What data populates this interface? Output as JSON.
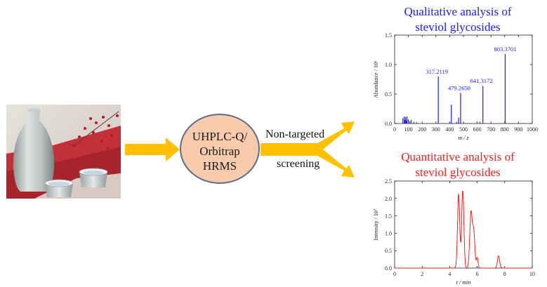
{
  "figure": {
    "instrument": {
      "line1": "UHPLC-Q/",
      "line2": "Orbitrap",
      "line3": "HRMS"
    },
    "arrow_labels": {
      "top": "Non-targeted",
      "bottom": "screening"
    },
    "qualitative_title": {
      "line1": "Qualitative analysis of",
      "line2": "steviol glycosides"
    },
    "quantitative_title": {
      "line1": "Quantitative analysis of",
      "line2": "steviol glycosides"
    },
    "colors": {
      "arrow": "#ffc000",
      "ellipse_fill": "#f8cbad",
      "ellipse_stroke": "#5b6d8c",
      "qual": "#1a1aff",
      "quant": "#ff1a1a"
    }
  },
  "chart_data": [
    {
      "type": "bar",
      "subtype": "mass-spectrum",
      "color": "#1a1aff",
      "xlabel": "m / z",
      "ylabel": "Abundance / 10⁶",
      "xlim": [
        0,
        1000
      ],
      "ylim": [
        0,
        1.5
      ],
      "xticks": [
        0,
        100,
        200,
        300,
        400,
        500,
        600,
        700,
        800,
        900,
        1000
      ],
      "yticks": [
        0.0,
        0.5,
        1.0,
        1.5
      ],
      "peaks": [
        {
          "x": 60,
          "y": 0.09
        },
        {
          "x": 70,
          "y": 0.12
        },
        {
          "x": 75,
          "y": 0.06
        },
        {
          "x": 80,
          "y": 0.11
        },
        {
          "x": 85,
          "y": 0.05
        },
        {
          "x": 90,
          "y": 0.12
        },
        {
          "x": 100,
          "y": 0.07
        },
        {
          "x": 110,
          "y": 0.04
        },
        {
          "x": 120,
          "y": 0.06
        },
        {
          "x": 140,
          "y": 0.03
        },
        {
          "x": 160,
          "y": 0.02
        },
        {
          "x": 317.2119,
          "y": 0.8
        },
        {
          "x": 400,
          "y": 0.02
        },
        {
          "x": 412,
          "y": 0.32
        },
        {
          "x": 450,
          "y": 0.03
        },
        {
          "x": 465,
          "y": 0.1
        },
        {
          "x": 479.265,
          "y": 0.52
        },
        {
          "x": 641.3172,
          "y": 0.64
        },
        {
          "x": 620,
          "y": 0.03
        },
        {
          "x": 803.3701,
          "y": 1.18
        }
      ],
      "labels": [
        {
          "x": 317.2119,
          "y": 0.8,
          "text": "317.2119"
        },
        {
          "x": 479.265,
          "y": 0.52,
          "text": "479.2650"
        },
        {
          "x": 641.3172,
          "y": 0.64,
          "text": "641.3172"
        },
        {
          "x": 803.3701,
          "y": 1.18,
          "text": "803.3701"
        }
      ]
    },
    {
      "type": "line",
      "subtype": "chromatogram",
      "color": "#ff1a1a",
      "xlabel": "t / min",
      "ylabel": "Intensity / 10⁷",
      "xlim": [
        0,
        10
      ],
      "ylim": [
        0,
        2.5
      ],
      "xticks": [
        0,
        2,
        4,
        6,
        8,
        10
      ],
      "yticks": [
        0.0,
        0.5,
        1.0,
        1.5,
        2.0,
        2.5
      ],
      "peaks": [
        {
          "center": 4.65,
          "height": 2.12,
          "width": 0.08
        },
        {
          "center": 4.95,
          "height": 2.22,
          "width": 0.08
        },
        {
          "center": 5.55,
          "height": 1.6,
          "width": 0.09
        },
        {
          "center": 5.75,
          "height": 1.0,
          "width": 0.08
        },
        {
          "center": 6.0,
          "height": 0.3,
          "width": 0.06
        },
        {
          "center": 7.55,
          "height": 0.35,
          "width": 0.08
        }
      ]
    }
  ]
}
